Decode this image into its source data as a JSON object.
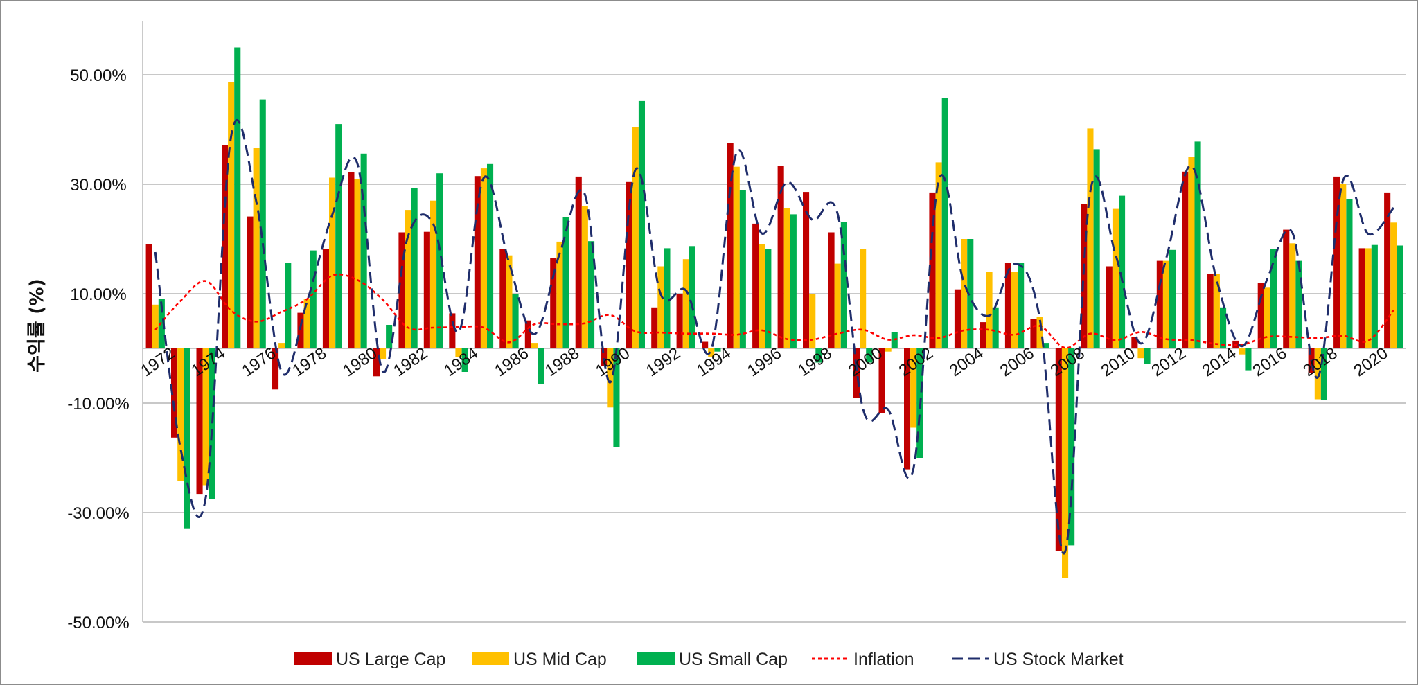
{
  "chart_data": {
    "type": "bar",
    "title": "",
    "xlabel": "",
    "ylabel": "수익률 (%)",
    "ylim": [
      -50,
      60
    ],
    "yticks": [
      50,
      30,
      10,
      -10,
      -30,
      -50
    ],
    "ytick_labels": [
      "50.00%",
      "30.00%",
      "10.00%",
      "-10.00%",
      "-30.00%",
      "-50.00%"
    ],
    "grid": true,
    "legend_position": "bottom",
    "x": [
      1972,
      1973,
      1974,
      1975,
      1976,
      1977,
      1978,
      1979,
      1980,
      1981,
      1982,
      1983,
      1984,
      1985,
      1986,
      1987,
      1988,
      1989,
      1990,
      1991,
      1992,
      1993,
      1994,
      1995,
      1996,
      1997,
      1998,
      1999,
      2000,
      2001,
      2002,
      2003,
      2004,
      2005,
      2006,
      2007,
      2008,
      2009,
      2010,
      2011,
      2012,
      2013,
      2014,
      2015,
      2016,
      2017,
      2018,
      2019,
      2020,
      2021
    ],
    "xtick_labels": [
      "1972",
      "1974",
      "1976",
      "1978",
      "1980",
      "1982",
      "1984",
      "1986",
      "1988",
      "1990",
      "1992",
      "1994",
      "1996",
      "1998",
      "2000",
      "2002",
      "2004",
      "2006",
      "2008",
      "2010",
      "2012",
      "2014",
      "2016",
      "2018",
      "2020"
    ],
    "series": [
      {
        "name": "US Large Cap",
        "kind": "bar",
        "color": "#C00000",
        "values": [
          19,
          -16.3,
          -26.6,
          37.1,
          24.1,
          -7.5,
          6.5,
          18.2,
          32.2,
          -5.1,
          21.2,
          21.3,
          6.4,
          31.5,
          18.1,
          5.1,
          16.5,
          31.4,
          -3.2,
          30.4,
          7.5,
          10,
          1.2,
          37.5,
          22.8,
          33.4,
          28.6,
          21.2,
          -9.1,
          -11.9,
          -22.1,
          28.5,
          10.8,
          4.8,
          15.6,
          5.4,
          -37,
          26.4,
          15,
          2.1,
          16,
          32.3,
          13.6,
          1.4,
          11.9,
          21.7,
          -4.5,
          31.4,
          18.3,
          28.5
        ]
      },
      {
        "name": "US Mid Cap",
        "kind": "bar",
        "color": "#FFC000",
        "values": [
          8,
          -24.2,
          -25,
          48.7,
          36.7,
          1,
          9,
          31.2,
          31,
          -2,
          25.3,
          27,
          -1.6,
          32.9,
          17,
          1,
          19.5,
          26,
          -10.8,
          40.4,
          15,
          16.3,
          -1.5,
          33.2,
          19.1,
          25.6,
          10,
          15.5,
          18.2,
          -0.6,
          -14.5,
          34,
          20,
          14,
          14,
          5.7,
          -41.9,
          40.2,
          25.5,
          -1.8,
          16,
          35,
          13.6,
          -1.1,
          11.1,
          19.2,
          -9.3,
          30,
          18.3,
          23
        ]
      },
      {
        "name": "US Small Cap",
        "kind": "bar",
        "color": "#00B050",
        "values": [
          9,
          -33,
          -27.5,
          55,
          45.5,
          15.7,
          17.9,
          41,
          35.6,
          4.3,
          29.3,
          32,
          -4.3,
          33.7,
          10,
          -6.5,
          24,
          19.6,
          -18,
          45.2,
          18.3,
          18.7,
          -0.6,
          28.9,
          18.2,
          24.5,
          -2.6,
          23.1,
          -2.6,
          3,
          -20,
          45.7,
          20,
          7.5,
          15.6,
          1,
          -36,
          36.4,
          27.9,
          -2.8,
          18,
          37.8,
          7.5,
          -4,
          18.2,
          16,
          -9.4,
          27.3,
          18.9,
          18.8
        ]
      },
      {
        "name": "Inflation",
        "kind": "line",
        "color": "#FF0000",
        "style": "dotted",
        "values": [
          3.4,
          8.7,
          12.3,
          6.9,
          4.9,
          6.7,
          9,
          13.3,
          12.5,
          8.9,
          3.8,
          3.8,
          3.9,
          3.8,
          1.1,
          4.4,
          4.4,
          4.6,
          6.1,
          3.1,
          2.9,
          2.7,
          2.7,
          2.5,
          3.3,
          1.7,
          1.6,
          2.7,
          3.4,
          1.6,
          2.4,
          1.9,
          3.3,
          3.4,
          2.5,
          4.1,
          0.1,
          2.7,
          1.5,
          3,
          1.7,
          1.5,
          0.8,
          0.7,
          2.1,
          2.1,
          1.9,
          2.3,
          1.4,
          7
        ]
      },
      {
        "name": "US Stock Market",
        "kind": "line",
        "color": "#1F2D6B",
        "style": "dashed",
        "values": [
          17.6,
          -18.3,
          -27.1,
          38.8,
          26.7,
          -4.3,
          8.5,
          24.4,
          33.7,
          -4.2,
          20.5,
          22.7,
          3,
          31.2,
          15.6,
          2.6,
          17.3,
          28.1,
          -6.2,
          32.7,
          9.9,
          10.6,
          -0.2,
          35.8,
          21,
          30.4,
          23.5,
          24.6,
          -11,
          -11.2,
          -22,
          30.7,
          12,
          6,
          15.5,
          5.4,
          -37.2,
          28.7,
          17.1,
          0.9,
          16.4,
          33.4,
          12.5,
          0.4,
          12.7,
          21.1,
          -5.3,
          30.7,
          20.9,
          25.7
        ]
      }
    ]
  },
  "legend": [
    {
      "label": "US Large Cap",
      "kind": "bar",
      "color": "#C00000"
    },
    {
      "label": "US Mid Cap",
      "kind": "bar",
      "color": "#FFC000"
    },
    {
      "label": "US Small Cap",
      "kind": "bar",
      "color": "#00B050"
    },
    {
      "label": "Inflation",
      "kind": "line",
      "color": "#FF0000",
      "style": "dotted"
    },
    {
      "label": "US Stock Market",
      "kind": "line",
      "color": "#1F2D6B",
      "style": "dashed"
    }
  ]
}
